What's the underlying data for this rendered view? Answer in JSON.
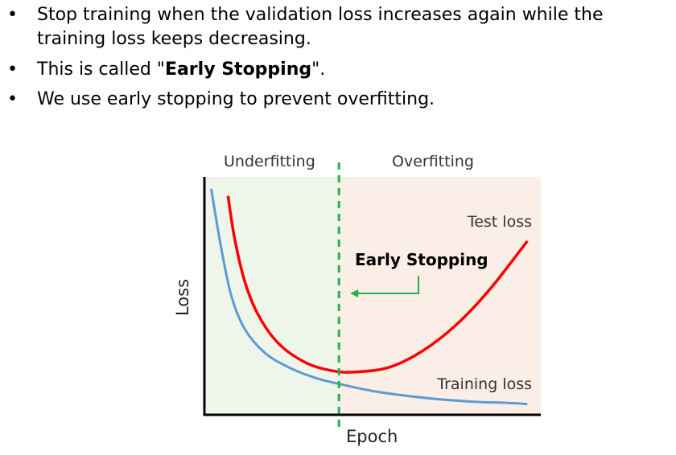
{
  "bullets": [
    {
      "text": "Stop training when the validation loss increases again while the training loss keeps decreasing."
    },
    {
      "prefix": "This is called \"",
      "bold": "Early Stopping",
      "suffix": "\"."
    },
    {
      "text": "We use early stopping to prevent overfitting."
    }
  ],
  "chart_data": {
    "type": "line",
    "title": "",
    "xlabel": "Epoch",
    "ylabel": "Loss",
    "region_labels": {
      "left": "Underfitting",
      "right": "Overfitting"
    },
    "annotation": "Early Stopping",
    "series": [
      {
        "name": "Test loss",
        "color": "#ff0000",
        "x": [
          0.07,
          0.09,
          0.12,
          0.16,
          0.22,
          0.3,
          0.38,
          0.45,
          0.55,
          0.65,
          0.75,
          0.85,
          0.96
        ],
        "y": [
          0.92,
          0.74,
          0.56,
          0.42,
          0.3,
          0.22,
          0.185,
          0.18,
          0.2,
          0.27,
          0.38,
          0.53,
          0.73
        ]
      },
      {
        "name": "Training loss",
        "color": "#5b9bd5",
        "x": [
          0.02,
          0.05,
          0.08,
          0.12,
          0.18,
          0.25,
          0.33,
          0.4,
          0.5,
          0.6,
          0.7,
          0.8,
          0.9,
          0.96
        ],
        "y": [
          0.95,
          0.7,
          0.5,
          0.36,
          0.26,
          0.2,
          0.155,
          0.13,
          0.1,
          0.08,
          0.065,
          0.055,
          0.05,
          0.045
        ]
      }
    ],
    "early_stop_x": 0.4,
    "underfitting_color": "#eef6ea",
    "overfitting_color": "#fbeee6",
    "stop_line_color": "#22b14c",
    "arrow_color": "#22b14c",
    "axis_color": "#000000",
    "grid": false
  }
}
